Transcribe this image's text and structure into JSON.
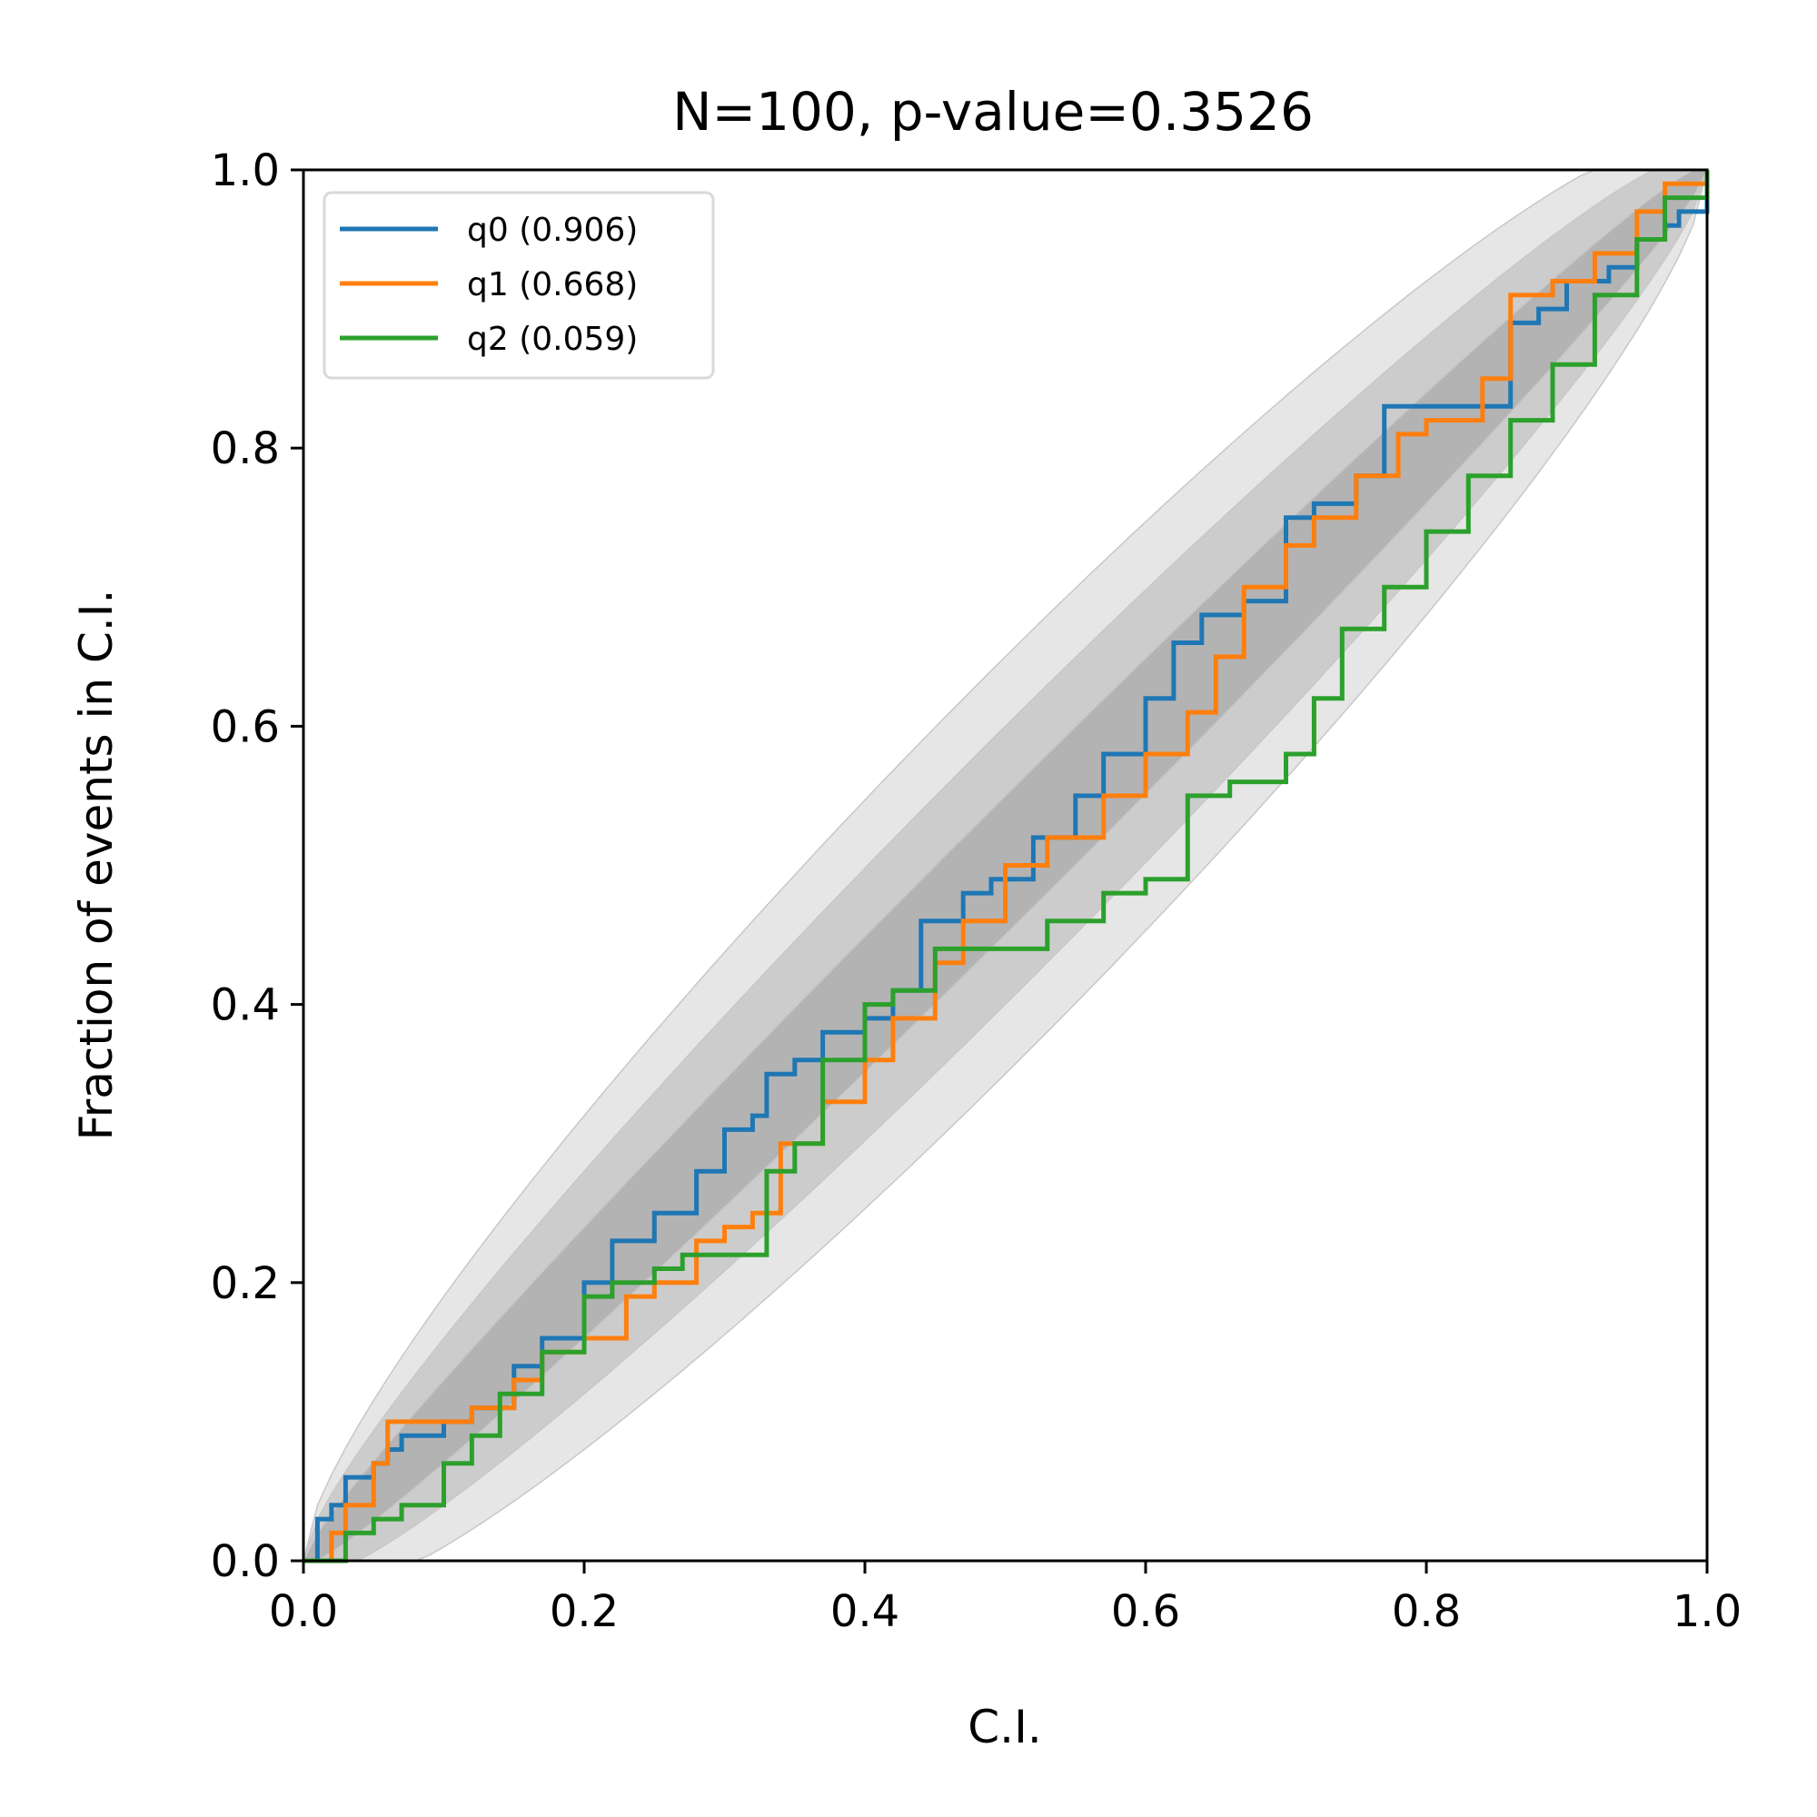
{
  "chart_data": {
    "type": "line",
    "title": "N=100, p-value=0.3526",
    "xlabel": "C.I.",
    "ylabel": "Fraction of events in C.I.",
    "xlim": [
      0,
      1
    ],
    "ylim": [
      0,
      1
    ],
    "xticks": [
      "0.0",
      "0.2",
      "0.4",
      "0.6",
      "0.8",
      "1.0"
    ],
    "yticks": [
      "0.0",
      "0.2",
      "0.4",
      "0.6",
      "0.8",
      "1.0"
    ],
    "grid": false,
    "legend_position": "top-left",
    "bands": {
      "description_sigma": [
        1,
        2,
        3
      ],
      "colors": [
        "#b3b3b3",
        "#cccccc",
        "#e6e6e6"
      ]
    },
    "series": [
      {
        "name": "q0 (0.906)",
        "color": "#1f77b4",
        "x": [
          0,
          0.01,
          0.02,
          0.03,
          0.05,
          0.06,
          0.07,
          0.1,
          0.12,
          0.15,
          0.17,
          0.2,
          0.22,
          0.25,
          0.28,
          0.3,
          0.32,
          0.33,
          0.35,
          0.37,
          0.4,
          0.42,
          0.44,
          0.47,
          0.49,
          0.52,
          0.55,
          0.57,
          0.6,
          0.62,
          0.64,
          0.67,
          0.7,
          0.72,
          0.75,
          0.77,
          0.8,
          0.84,
          0.86,
          0.88,
          0.9,
          0.93,
          0.95,
          0.97,
          0.98,
          1.0
        ],
        "y": [
          0,
          0.03,
          0.04,
          0.06,
          0.07,
          0.08,
          0.09,
          0.1,
          0.11,
          0.14,
          0.16,
          0.2,
          0.23,
          0.25,
          0.28,
          0.31,
          0.32,
          0.35,
          0.36,
          0.38,
          0.39,
          0.41,
          0.46,
          0.48,
          0.49,
          0.52,
          0.55,
          0.58,
          0.62,
          0.66,
          0.68,
          0.69,
          0.75,
          0.76,
          0.78,
          0.83,
          0.83,
          0.83,
          0.89,
          0.9,
          0.92,
          0.93,
          0.95,
          0.96,
          0.97,
          1.0
        ]
      },
      {
        "name": "q1 (0.668)",
        "color": "#ff7f0e",
        "x": [
          0,
          0.02,
          0.03,
          0.05,
          0.06,
          0.1,
          0.12,
          0.15,
          0.17,
          0.2,
          0.23,
          0.25,
          0.28,
          0.3,
          0.32,
          0.34,
          0.37,
          0.4,
          0.42,
          0.45,
          0.47,
          0.5,
          0.53,
          0.57,
          0.6,
          0.63,
          0.65,
          0.67,
          0.7,
          0.72,
          0.75,
          0.78,
          0.8,
          0.84,
          0.86,
          0.89,
          0.92,
          0.95,
          0.97,
          1.0
        ],
        "y": [
          0,
          0.02,
          0.04,
          0.07,
          0.1,
          0.1,
          0.11,
          0.13,
          0.15,
          0.16,
          0.19,
          0.2,
          0.23,
          0.24,
          0.25,
          0.3,
          0.33,
          0.36,
          0.39,
          0.43,
          0.46,
          0.5,
          0.52,
          0.55,
          0.58,
          0.61,
          0.65,
          0.7,
          0.73,
          0.75,
          0.78,
          0.81,
          0.82,
          0.85,
          0.91,
          0.92,
          0.94,
          0.97,
          0.99,
          1.0
        ]
      },
      {
        "name": "q2 (0.059)",
        "color": "#2ca02c",
        "x": [
          0,
          0.03,
          0.05,
          0.07,
          0.1,
          0.12,
          0.14,
          0.17,
          0.2,
          0.22,
          0.25,
          0.27,
          0.3,
          0.32,
          0.33,
          0.35,
          0.37,
          0.4,
          0.42,
          0.45,
          0.47,
          0.5,
          0.53,
          0.57,
          0.6,
          0.63,
          0.66,
          0.7,
          0.72,
          0.74,
          0.77,
          0.8,
          0.83,
          0.86,
          0.89,
          0.92,
          0.95,
          0.97,
          1.0
        ],
        "y": [
          0,
          0.02,
          0.03,
          0.04,
          0.07,
          0.09,
          0.12,
          0.15,
          0.19,
          0.2,
          0.21,
          0.22,
          0.22,
          0.22,
          0.28,
          0.3,
          0.36,
          0.4,
          0.41,
          0.44,
          0.44,
          0.44,
          0.46,
          0.48,
          0.49,
          0.55,
          0.56,
          0.58,
          0.62,
          0.67,
          0.7,
          0.74,
          0.78,
          0.82,
          0.86,
          0.91,
          0.95,
          0.98,
          1.0
        ]
      }
    ]
  }
}
